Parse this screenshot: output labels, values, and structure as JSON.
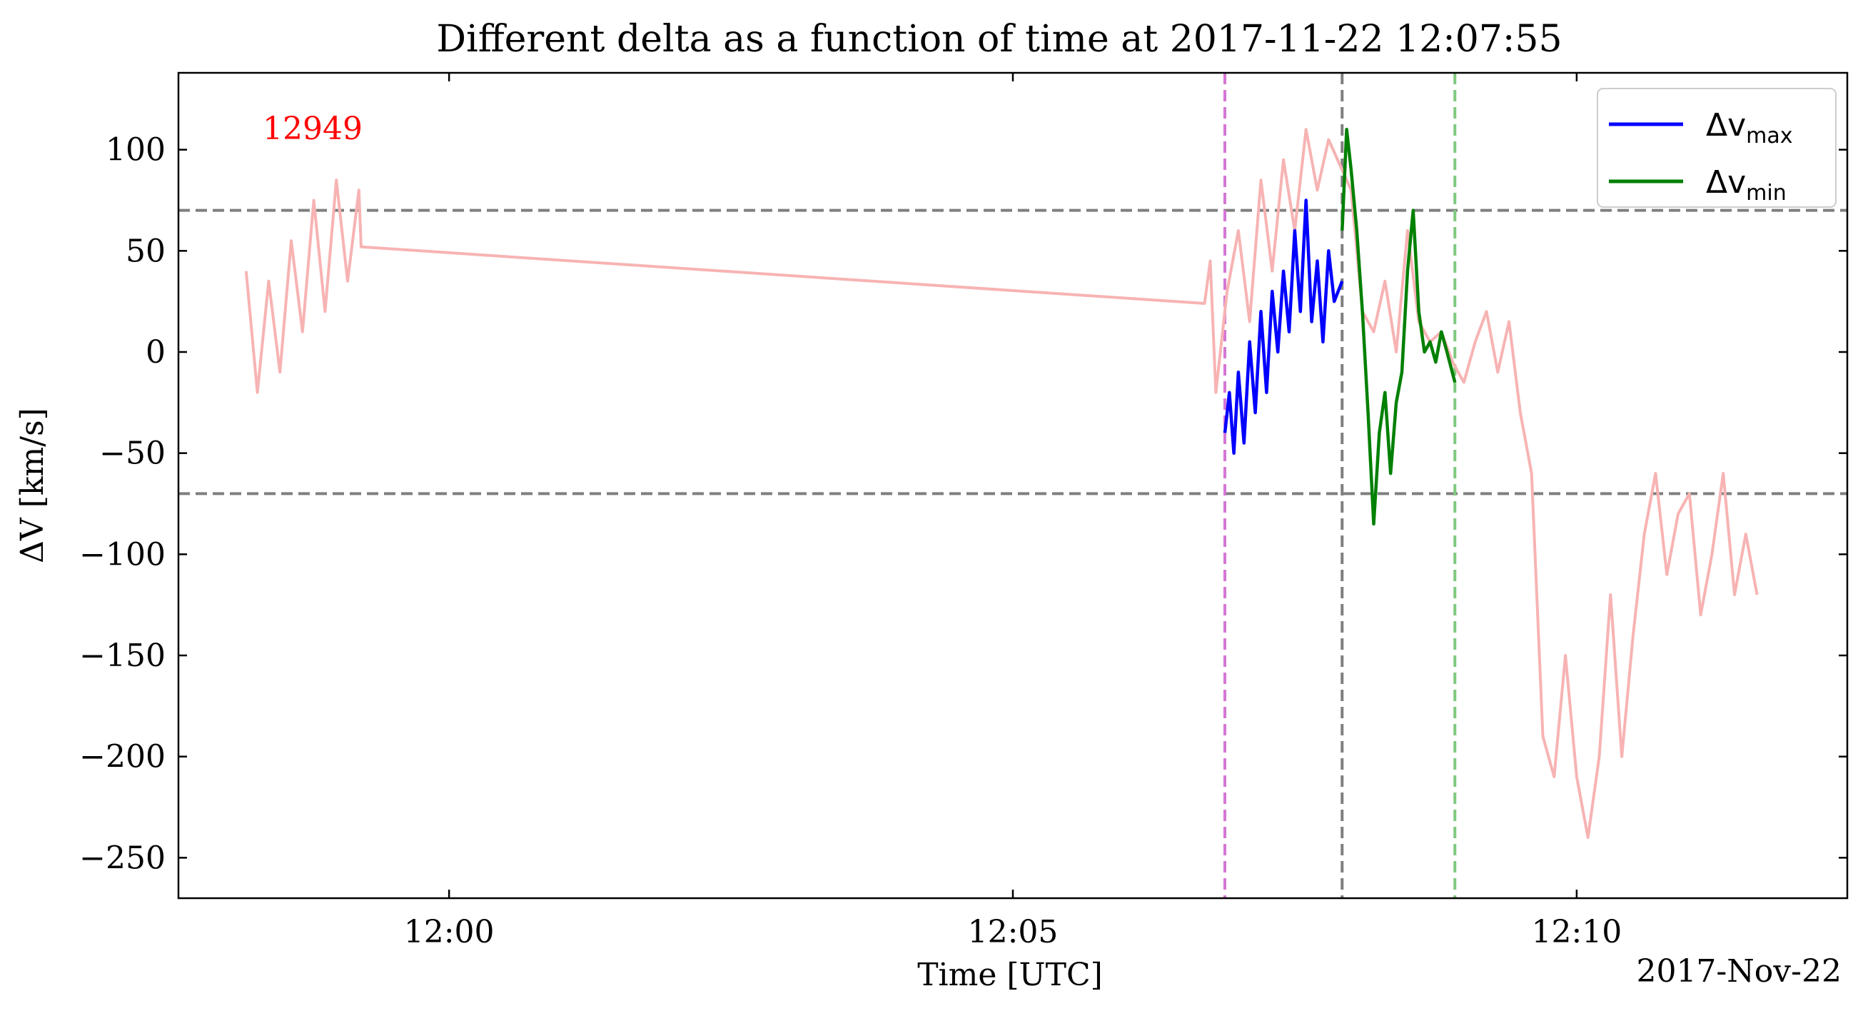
{
  "chart_data": {
    "type": "line",
    "title": "Different delta as a function of time at 2017-11-22 12:07:55",
    "xlabel": "Time [UTC]",
    "ylabel": "ΔV [km/s]",
    "date_label": "2017-Nov-22",
    "annotation": "12949",
    "x_unit": "minutes after 12:00 UTC",
    "xlim": [
      -2.4,
      12.4
    ],
    "ylim": [
      -270,
      138
    ],
    "x_ticks": [
      {
        "value": 0,
        "label": "12:00"
      },
      {
        "value": 5,
        "label": "12:05"
      },
      {
        "value": 10,
        "label": "12:10"
      }
    ],
    "y_ticks": [
      {
        "value": 100,
        "label": "100"
      },
      {
        "value": 50,
        "label": "50"
      },
      {
        "value": 0,
        "label": "0"
      },
      {
        "value": -50,
        "label": "−50"
      },
      {
        "value": -100,
        "label": "−100"
      },
      {
        "value": -150,
        "label": "−150"
      },
      {
        "value": -200,
        "label": "−200"
      },
      {
        "value": -250,
        "label": "−250"
      }
    ],
    "hlines": [
      {
        "y": 70,
        "color": "#7f7f7f",
        "style": "dashed"
      },
      {
        "y": -70,
        "color": "#7f7f7f",
        "style": "dashed"
      }
    ],
    "vlines": [
      {
        "x": 6.88,
        "color": "#d577d5",
        "style": "dashed"
      },
      {
        "x": 7.92,
        "color": "#7f7f7f",
        "style": "dashed"
      },
      {
        "x": 8.92,
        "color": "#7fc97f",
        "style": "dashed"
      }
    ],
    "legend": {
      "placement": "top-right",
      "entries": [
        {
          "label": "Δv",
          "sub": "max",
          "color": "#0000ff"
        },
        {
          "label": "Δv",
          "sub": "min",
          "color": "#008000"
        }
      ]
    },
    "series": [
      {
        "role": "background",
        "color": "#f7b3b3",
        "x": [
          -1.8,
          -1.7,
          -1.6,
          -1.5,
          -1.4,
          -1.3,
          -1.2,
          -1.1,
          -1.0,
          -0.9,
          -0.8,
          -0.78,
          6.7,
          6.75,
          6.8,
          6.9,
          7.0,
          7.1,
          7.2,
          7.3,
          7.4,
          7.5,
          7.6,
          7.7,
          7.8,
          7.92,
          8.0,
          8.1,
          8.2,
          8.3,
          8.4,
          8.5,
          8.6,
          8.7,
          8.8,
          8.9,
          9.0,
          9.1,
          9.2,
          9.3,
          9.4,
          9.5,
          9.6,
          9.7,
          9.8,
          9.9,
          10.0,
          10.1,
          10.2,
          10.3,
          10.4,
          10.5,
          10.6,
          10.7,
          10.8,
          10.9,
          11.0,
          11.1,
          11.2,
          11.3,
          11.4,
          11.5,
          11.6
        ],
        "y": [
          40,
          -20,
          35,
          -10,
          55,
          10,
          75,
          20,
          85,
          35,
          80,
          52,
          24,
          45,
          -20,
          30,
          60,
          15,
          85,
          40,
          95,
          60,
          110,
          80,
          105,
          90,
          80,
          20,
          10,
          35,
          0,
          60,
          15,
          5,
          10,
          -5,
          -15,
          5,
          20,
          -10,
          15,
          -30,
          -60,
          -190,
          -210,
          -150,
          -210,
          -240,
          -200,
          -120,
          -200,
          -140,
          -90,
          -60,
          -110,
          -80,
          -70,
          -130,
          -100,
          -60,
          -120,
          -90,
          -120
        ]
      },
      {
        "name": "Δvmax",
        "color": "#0000ff",
        "x": [
          6.88,
          6.92,
          6.96,
          7.0,
          7.05,
          7.1,
          7.15,
          7.2,
          7.25,
          7.3,
          7.35,
          7.4,
          7.45,
          7.5,
          7.55,
          7.6,
          7.65,
          7.7,
          7.75,
          7.8,
          7.85,
          7.92
        ],
        "y": [
          -40,
          -20,
          -50,
          -10,
          -45,
          5,
          -30,
          20,
          -20,
          30,
          0,
          40,
          10,
          60,
          20,
          75,
          15,
          45,
          5,
          50,
          25,
          35
        ]
      },
      {
        "name": "Δvmin",
        "color": "#008000",
        "x": [
          7.92,
          7.96,
          8.0,
          8.05,
          8.1,
          8.15,
          8.2,
          8.25,
          8.3,
          8.35,
          8.4,
          8.45,
          8.5,
          8.55,
          8.6,
          8.65,
          8.7,
          8.75,
          8.8,
          8.85,
          8.92
        ],
        "y": [
          60,
          110,
          90,
          60,
          20,
          -30,
          -85,
          -40,
          -20,
          -60,
          -25,
          -10,
          40,
          70,
          20,
          0,
          5,
          -5,
          10,
          0,
          -15
        ]
      }
    ]
  }
}
